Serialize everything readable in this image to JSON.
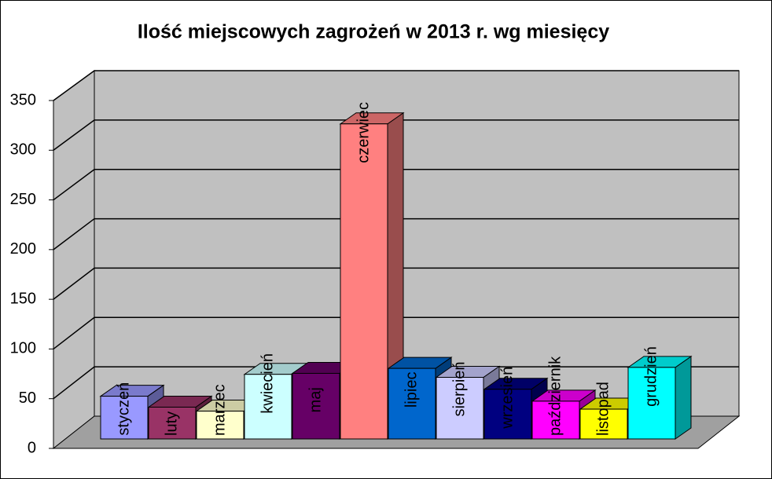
{
  "chart_data": {
    "type": "bar3d",
    "title": "Ilość miejscowych zagrożeń w 2013 r. wg miesięcy",
    "categories": [
      "styczeń",
      "luty",
      "marzec",
      "kwiecień",
      "maj",
      "czerwiec",
      "lipiec",
      "sierpień",
      "wrzesień",
      "październik",
      "listopad",
      "grudzień"
    ],
    "values": [
      43,
      32,
      28,
      65,
      66,
      317,
      71,
      62,
      50,
      38,
      30,
      72
    ],
    "colors": [
      "#9999ff",
      "#993366",
      "#ffffcc",
      "#ccffff",
      "#660066",
      "#ff8080",
      "#0066cc",
      "#ccccff",
      "#000080",
      "#ff00ff",
      "#ffff00",
      "#00ffff"
    ],
    "ylim": [
      0,
      350
    ],
    "yticks": [
      0,
      50,
      100,
      150,
      200,
      250,
      300,
      350
    ],
    "grid": true
  }
}
